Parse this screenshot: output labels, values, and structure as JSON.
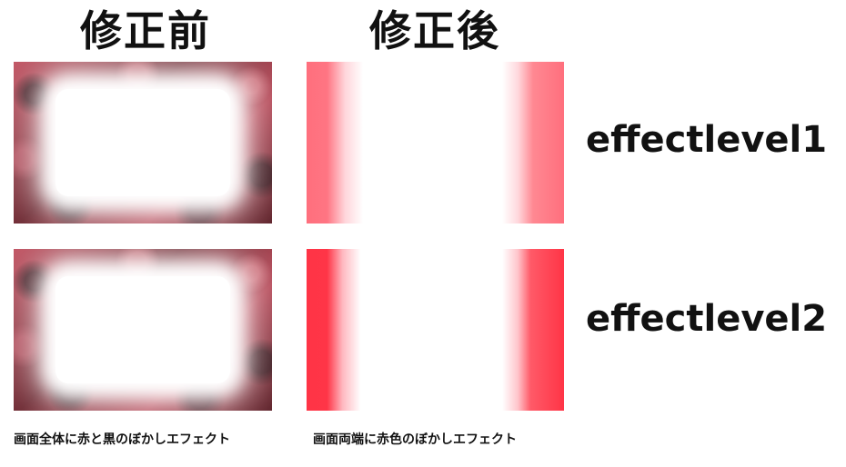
{
  "headings": {
    "before": "修正前",
    "after": "修正後"
  },
  "levels": [
    {
      "label": "effectlevel1"
    },
    {
      "label": "effectlevel2"
    }
  ],
  "captions": {
    "before": "画面全体に赤と黒のぼかしエフェクト",
    "after": "画面両端に赤色のぼかしエフェクト"
  },
  "colors": {
    "level1_edge": "#ff6f7d",
    "level2_edge": "#ff3446",
    "before_frame": "#8a2f3a"
  }
}
